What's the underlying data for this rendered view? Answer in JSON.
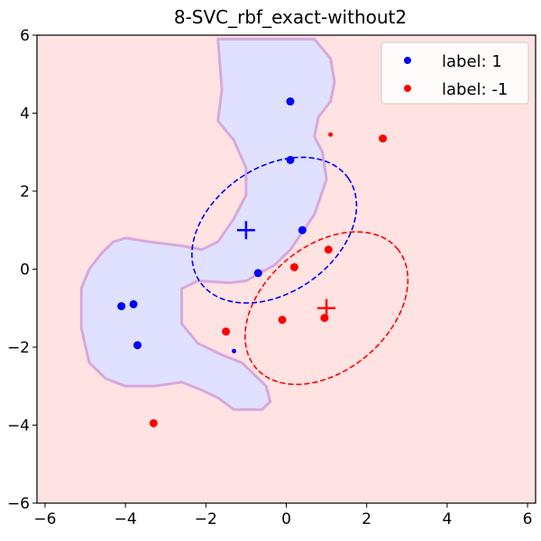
{
  "chart_data": {
    "type": "scatter",
    "title": "8-SVC_rbf_exact-without2",
    "xlabel": "",
    "ylabel": "",
    "xlim": [
      -6.2,
      6.2
    ],
    "ylim": [
      -6,
      6
    ],
    "x_ticks": [
      -6,
      -4,
      -2,
      0,
      2,
      4,
      6
    ],
    "y_ticks": [
      -6,
      -4,
      -2,
      0,
      2,
      4,
      6
    ],
    "x_tick_labels": [
      "−6",
      "−4",
      "−2",
      "0",
      "2",
      "4",
      "6"
    ],
    "y_tick_labels": [
      "−6",
      "−4",
      "−2",
      "0",
      "2",
      "4",
      "6"
    ],
    "grid": false,
    "legend_position": "top-right",
    "background_color": "#ffe2e2",
    "region_color": "#e0e0ff",
    "region_edge_color": "#d8a8dc",
    "series": [
      {
        "name": "label: 1",
        "color": "#0000ff",
        "points": [
          [
            0.1,
            4.3
          ],
          [
            0.1,
            2.8
          ],
          [
            0.4,
            1.0
          ],
          [
            -0.7,
            -0.1
          ],
          [
            -3.8,
            -0.9
          ],
          [
            -4.1,
            -0.95
          ],
          [
            -3.7,
            -1.95
          ]
        ],
        "small_points": [
          [
            -1.3,
            -2.1
          ]
        ]
      },
      {
        "name": "label: -1",
        "color": "#ff0000",
        "points": [
          [
            2.4,
            3.35
          ],
          [
            1.05,
            0.5
          ],
          [
            0.2,
            0.05
          ],
          [
            -0.1,
            -1.3
          ],
          [
            0.95,
            -1.25
          ],
          [
            -1.5,
            -1.6
          ],
          [
            -3.3,
            -3.95
          ]
        ],
        "small_points": [
          [
            1.1,
            3.45
          ]
        ]
      }
    ],
    "means": [
      {
        "color": "#0000ff",
        "x": -1.0,
        "y": 1.0
      },
      {
        "color": "#ff0000",
        "x": 1.0,
        "y": -1.0
      }
    ],
    "ellipses": [
      {
        "color": "#0000ff",
        "cx": -0.3,
        "cy": 1.0,
        "rx": 2.25,
        "ry": 1.6,
        "angle": 35
      },
      {
        "color": "#ff0000",
        "cx": 1.0,
        "cy": -1.0,
        "rx": 2.3,
        "ry": 1.6,
        "angle": 40
      }
    ],
    "decision_region": [
      [
        -1.7,
        5.9
      ],
      [
        0.7,
        5.9
      ],
      [
        1.1,
        5.4
      ],
      [
        1.2,
        4.8
      ],
      [
        1.1,
        4.3
      ],
      [
        0.8,
        3.9
      ],
      [
        0.7,
        3.4
      ],
      [
        0.9,
        3.0
      ],
      [
        1.0,
        2.3
      ],
      [
        0.7,
        1.4
      ],
      [
        0.1,
        0.5
      ],
      [
        -0.3,
        0.1
      ],
      [
        -1.0,
        -0.3
      ],
      [
        -1.4,
        -0.35
      ],
      [
        -2.2,
        -0.3
      ],
      [
        -2.6,
        -0.5
      ],
      [
        -2.6,
        -1.4
      ],
      [
        -2.2,
        -1.9
      ],
      [
        -1.6,
        -2.2
      ],
      [
        -1.1,
        -2.4
      ],
      [
        -0.5,
        -3.0
      ],
      [
        -0.4,
        -3.4
      ],
      [
        -0.6,
        -3.6
      ],
      [
        -1.3,
        -3.6
      ],
      [
        -1.7,
        -3.3
      ],
      [
        -2.1,
        -3.1
      ],
      [
        -2.6,
        -2.9
      ],
      [
        -3.3,
        -3.0
      ],
      [
        -4.0,
        -3.0
      ],
      [
        -4.5,
        -2.8
      ],
      [
        -4.9,
        -2.4
      ],
      [
        -5.1,
        -1.5
      ],
      [
        -5.1,
        -0.5
      ],
      [
        -4.9,
        0.0
      ],
      [
        -4.6,
        0.4
      ],
      [
        -4.3,
        0.7
      ],
      [
        -4.0,
        0.8
      ],
      [
        -3.4,
        0.7
      ],
      [
        -2.6,
        0.6
      ],
      [
        -2.1,
        0.5
      ],
      [
        -1.7,
        0.7
      ],
      [
        -1.3,
        1.3
      ],
      [
        -1.0,
        1.9
      ],
      [
        -1.0,
        2.6
      ],
      [
        -1.3,
        3.3
      ],
      [
        -1.7,
        3.8
      ],
      [
        -1.6,
        4.6
      ]
    ]
  }
}
